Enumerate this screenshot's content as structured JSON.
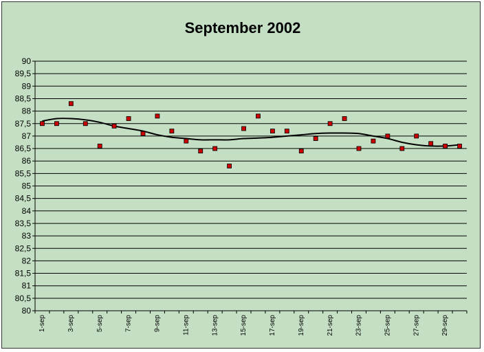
{
  "chart_data": {
    "type": "scatter",
    "title": "September 2002",
    "xlabel": "",
    "ylabel": "",
    "ylim": [
      80,
      90
    ],
    "ystep": 0.5,
    "grid": true,
    "legend": "none",
    "colors": {
      "background": "#c4dfc4",
      "gridline": "#000000",
      "marker": "#cc0000",
      "trendline": "#000000"
    },
    "categories": [
      "1-sep",
      "2-sep",
      "3-sep",
      "4-sep",
      "5-sep",
      "6-sep",
      "7-sep",
      "8-sep",
      "9-sep",
      "10-sep",
      "11-sep",
      "12-sep",
      "13-sep",
      "14-sep",
      "15-sep",
      "16-sep",
      "17-sep",
      "18-sep",
      "19-sep",
      "20-sep",
      "21-sep",
      "22-sep",
      "23-sep",
      "24-sep",
      "25-sep",
      "26-sep",
      "27-sep",
      "28-sep",
      "29-sep",
      "30-sep"
    ],
    "xtick_labels": [
      "1-sep",
      "3-sep",
      "5-sep",
      "7-sep",
      "9-sep",
      "11-sep",
      "13-sep",
      "15-sep",
      "17-sep",
      "19-sep",
      "21-sep",
      "23-sep",
      "25-sep",
      "27-sep",
      "29-sep"
    ],
    "ytick_labels": [
      "80",
      "80,5",
      "81",
      "81,5",
      "82",
      "82,5",
      "83",
      "83,5",
      "84",
      "84,5",
      "85",
      "85,5",
      "86",
      "86,5",
      "87",
      "87,5",
      "88",
      "88,5",
      "89",
      "89,5",
      "90"
    ],
    "values": [
      87.5,
      87.5,
      88.3,
      87.5,
      86.6,
      87.4,
      87.7,
      87.1,
      87.8,
      87.2,
      86.8,
      86.4,
      86.5,
      85.8,
      87.3,
      87.8,
      87.2,
      87.2,
      86.4,
      86.9,
      87.5,
      87.7,
      86.5,
      86.8,
      87.0,
      86.5,
      87.0,
      86.7,
      86.6,
      86.6
    ],
    "trendline": [
      87.6,
      87.7,
      87.7,
      87.65,
      87.55,
      87.4,
      87.3,
      87.2,
      87.05,
      86.95,
      86.9,
      86.85,
      86.85,
      86.85,
      86.9,
      86.92,
      86.95,
      87.0,
      87.05,
      87.1,
      87.12,
      87.12,
      87.1,
      87.0,
      86.9,
      86.75,
      86.65,
      86.6,
      86.6,
      86.65
    ]
  }
}
